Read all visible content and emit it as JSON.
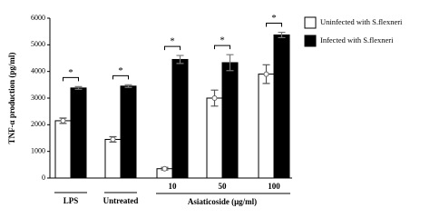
{
  "chart_data": {
    "type": "bar",
    "y_label": "TNF-α production (pg/ml)",
    "categories": [
      "LPS",
      "Untreated",
      "10",
      "50",
      "100"
    ],
    "group_label": "Asiaticoside (μg/ml)",
    "series": [
      {
        "name": "Uninfected with S.flexneri",
        "color": "#ffffff",
        "values": [
          2150,
          1450,
          350,
          3000,
          3900
        ],
        "errors": [
          100,
          100,
          50,
          300,
          350
        ]
      },
      {
        "name": "Infected with S.flexneri",
        "color": "#000000",
        "values": [
          3380,
          3450,
          4450,
          4330,
          5370
        ],
        "errors": [
          50,
          50,
          150,
          300,
          100
        ]
      }
    ],
    "annotations": [
      "*",
      "*",
      "*",
      "*",
      "*"
    ],
    "ylim": [
      0,
      6000
    ],
    "yticks": [
      0,
      1000,
      2000,
      3000,
      4000,
      5000,
      6000
    ],
    "grid": false
  }
}
